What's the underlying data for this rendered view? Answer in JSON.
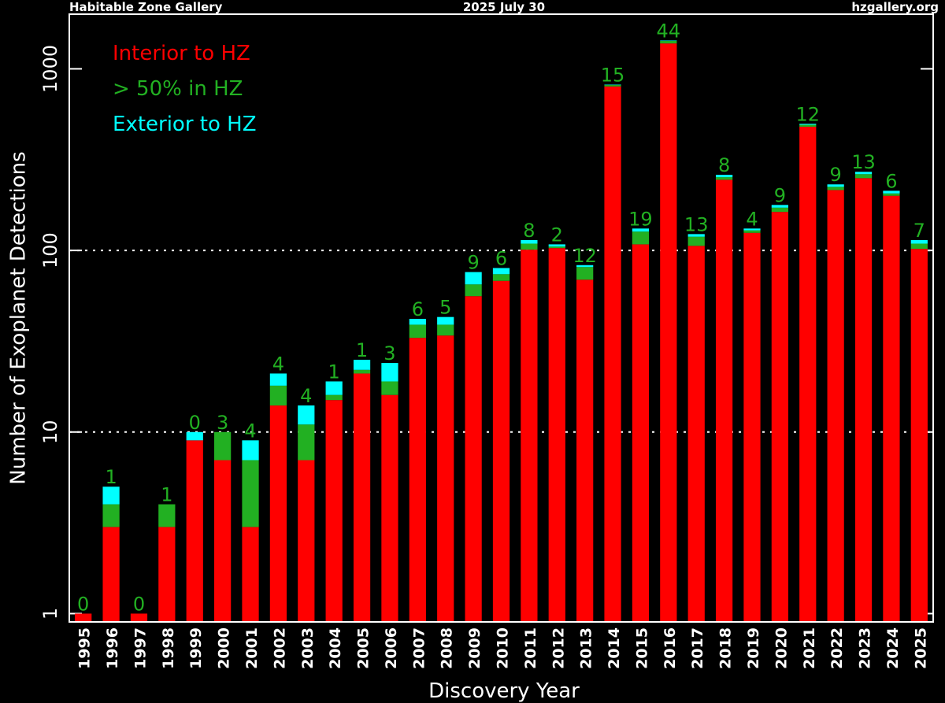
{
  "chart_data": {
    "type": "stacked_bar",
    "header": {
      "left": "Habitable Zone Gallery",
      "center": "2025 July 30",
      "right": "hzgallery.org"
    },
    "x_label": "Discovery Year",
    "y_label": "Number of Exoplanet Detections",
    "log_scale": true,
    "ylim": [
      0.9,
      2000
    ],
    "yticks": [
      1,
      10,
      100,
      1000
    ],
    "grid_values": [
      10,
      100
    ],
    "legend": "upper left",
    "label_series": 1,
    "categories": [
      "1995",
      "1996",
      "1997",
      "1998",
      "1999",
      "2000",
      "2001",
      "2002",
      "2003",
      "2004",
      "2005",
      "2006",
      "2007",
      "2008",
      "2009",
      "2010",
      "2011",
      "2012",
      "2013",
      "2014",
      "2015",
      "2016",
      "2017",
      "2018",
      "2019",
      "2020",
      "2021",
      "2022",
      "2023",
      "2024",
      "2025"
    ],
    "series": [
      {
        "name": "Interior to HZ",
        "color": "#ff0000",
        "values": [
          1,
          3,
          1,
          3,
          9,
          7,
          3,
          14,
          7,
          15,
          21,
          16,
          33,
          34,
          56,
          68,
          101,
          103,
          69,
          800,
          108,
          1380,
          106,
          245,
          125,
          163,
          480,
          215,
          250,
          200,
          102
        ]
      },
      {
        "name": "> 50% in HZ",
        "color": "#22b022",
        "values": [
          0,
          1,
          0,
          1,
          0,
          3,
          4,
          4,
          4,
          1,
          1,
          3,
          6,
          5,
          9,
          6,
          8,
          2,
          12,
          15,
          19,
          44,
          13,
          8,
          4,
          9,
          12,
          9,
          13,
          6,
          7
        ]
      },
      {
        "name": "Exterior to HZ",
        "color": "#00ffff",
        "values": [
          0,
          1,
          0,
          0,
          1,
          0,
          2,
          3,
          3,
          3,
          3,
          5,
          3,
          4,
          11,
          6,
          5,
          3,
          2,
          4,
          5,
          8,
          4,
          8,
          3,
          6,
          6,
          7,
          8,
          7,
          5
        ]
      }
    ]
  }
}
